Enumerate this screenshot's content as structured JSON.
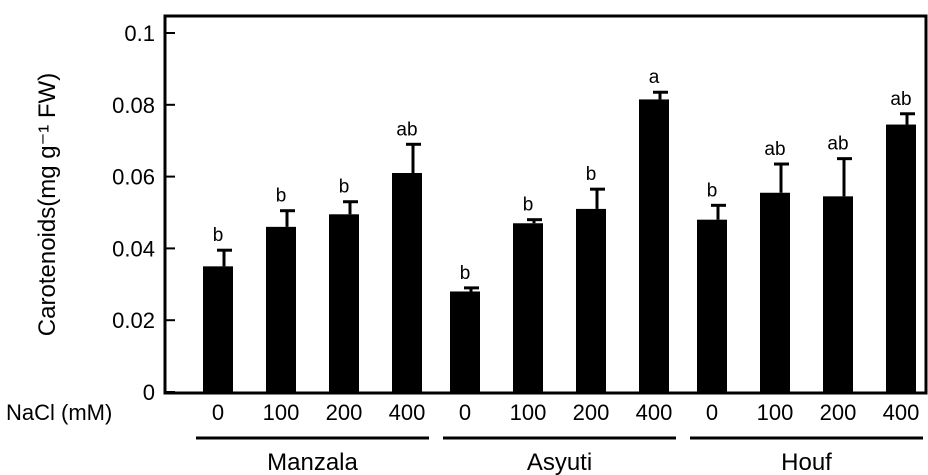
{
  "chart_data": {
    "type": "bar",
    "ylabel": "Carotenoids(mg g⁻¹ FW)",
    "xlabel_prefix": "NaCl (mM)",
    "ylim": [
      0,
      0.1
    ],
    "yticks": [
      "0",
      "0.02",
      "0.04",
      "0.06",
      "0.08",
      "0.1"
    ],
    "grid": false,
    "groups": [
      {
        "name": "Manzala",
        "bars": [
          {
            "label": "0",
            "value": 0.035,
            "error": 0.0045,
            "letter": "b"
          },
          {
            "label": "100",
            "value": 0.046,
            "error": 0.0045,
            "letter": "b"
          },
          {
            "label": "200",
            "value": 0.0495,
            "error": 0.0035,
            "letter": "b"
          },
          {
            "label": "400",
            "value": 0.061,
            "error": 0.008,
            "letter": "ab"
          }
        ]
      },
      {
        "name": "Asyuti",
        "bars": [
          {
            "label": "0",
            "value": 0.028,
            "error": 0.001,
            "letter": "b"
          },
          {
            "label": "100",
            "value": 0.047,
            "error": 0.001,
            "letter": "b"
          },
          {
            "label": "200",
            "value": 0.051,
            "error": 0.0055,
            "letter": "b"
          },
          {
            "label": "400",
            "value": 0.0815,
            "error": 0.002,
            "letter": "a"
          }
        ]
      },
      {
        "name": "Houf",
        "bars": [
          {
            "label": "0",
            "value": 0.048,
            "error": 0.004,
            "letter": "b"
          },
          {
            "label": "100",
            "value": 0.0555,
            "error": 0.008,
            "letter": "ab"
          },
          {
            "label": "200",
            "value": 0.0545,
            "error": 0.0105,
            "letter": "ab"
          },
          {
            "label": "400",
            "value": 0.0745,
            "error": 0.003,
            "letter": "ab"
          }
        ]
      }
    ],
    "colors": {
      "bars": "#000000",
      "axes": "#000000",
      "background": "#ffffff"
    }
  }
}
